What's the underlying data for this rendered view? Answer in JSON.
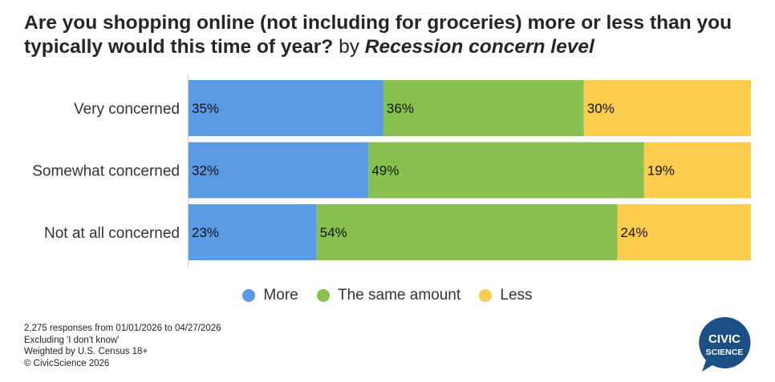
{
  "title": {
    "main": "Are you shopping online (not including for groceries) more or less than you typically would this time of year?",
    "by": "by",
    "dimension": "Recession concern level"
  },
  "chart_data": {
    "type": "bar",
    "orientation": "horizontal",
    "stacked": true,
    "percent": true,
    "categories": [
      "Very concerned",
      "Somewhat concerned",
      "Not at all concerned"
    ],
    "series": [
      {
        "name": "More",
        "values": [
          35,
          32,
          23
        ],
        "labels": [
          "35%",
          "32%",
          "23%"
        ],
        "color": "#5b9be6"
      },
      {
        "name": "The same amount",
        "values": [
          36,
          49,
          54
        ],
        "labels": [
          "36%",
          "49%",
          "54%"
        ],
        "color": "#87c04f"
      },
      {
        "name": "Less",
        "values": [
          30,
          19,
          24
        ],
        "labels": [
          "30%",
          "19%",
          "24%"
        ],
        "color": "#fccc4f"
      }
    ],
    "xlim": [
      0,
      100
    ],
    "grid": false,
    "legend_position": "bottom"
  },
  "footnotes": [
    "2,275 responses from 01/01/2026 to 04/27/2026",
    "Excluding 'I don't know'",
    "Weighted by U.S. Census 18+",
    "© CivicScience 2026"
  ],
  "logo": {
    "line1": "CIVIC",
    "line2": "SCIENCE",
    "color": "#1c4f86"
  }
}
